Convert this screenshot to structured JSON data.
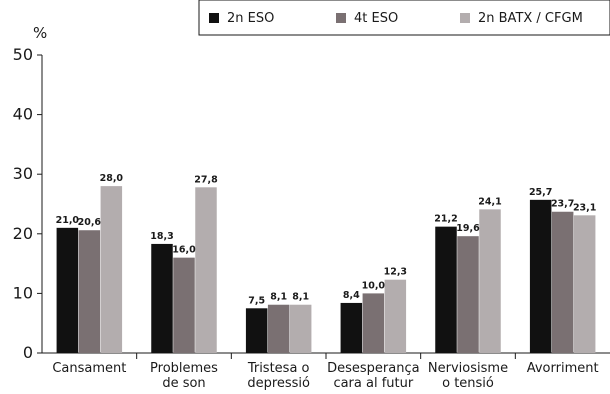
{
  "chart_data": {
    "type": "bar",
    "unit_label": "%",
    "ylim": [
      0,
      50
    ],
    "yticks": [
      0,
      10,
      20,
      30,
      40,
      50
    ],
    "grid": false,
    "legend_position": "top-right",
    "categories": [
      [
        "Cansament"
      ],
      [
        "Problemes",
        "de son"
      ],
      [
        "Tristesa o",
        "depressió"
      ],
      [
        "Desesperança",
        "cara al futur"
      ],
      [
        "Nerviosisme",
        "o tensió"
      ],
      [
        "Avorriment"
      ]
    ],
    "series": [
      {
        "name": "2n ESO",
        "color": "#111111",
        "values": [
          21.0,
          18.3,
          7.5,
          8.4,
          21.2,
          25.7
        ],
        "labels": [
          "21,0",
          "18,3",
          "7,5",
          "8,4",
          "21,2",
          "25,7"
        ]
      },
      {
        "name": "4t ESO",
        "color": "#7a7072",
        "values": [
          20.6,
          16.0,
          8.1,
          10.0,
          19.6,
          23.7
        ],
        "labels": [
          "20,6",
          "16,0",
          "8,1",
          "10,0",
          "19,6",
          "23,7"
        ]
      },
      {
        "name": "2n BATX / CFGM",
        "color": "#b3adae",
        "values": [
          28.0,
          27.8,
          8.1,
          12.3,
          24.1,
          23.1
        ],
        "labels": [
          "28,0",
          "27,8",
          "8,1",
          "12,3",
          "24,1",
          "23,1"
        ]
      }
    ]
  }
}
